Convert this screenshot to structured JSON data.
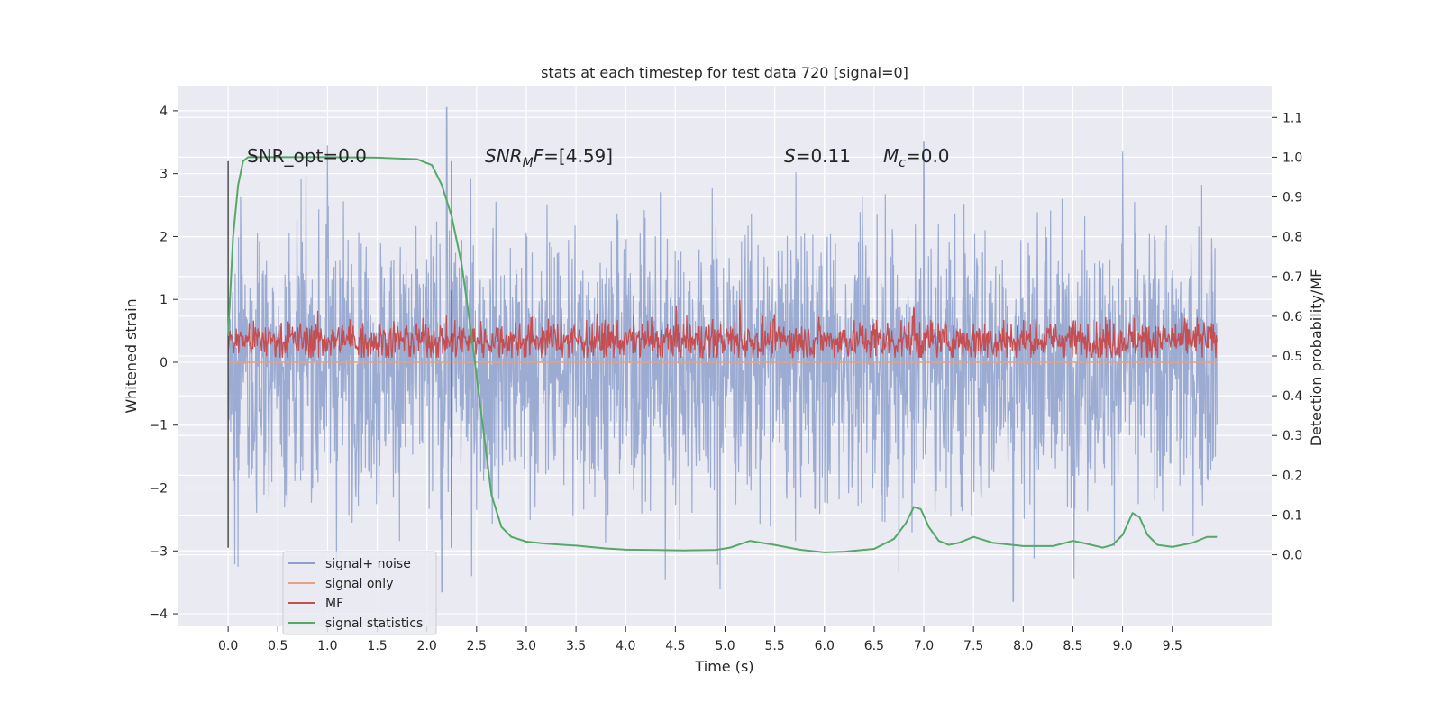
{
  "chart_data": {
    "type": "line",
    "title": "stats at each timestep for test data 720 [signal=0]",
    "xlabel": "Time (s)",
    "ylabel": "Whitened strain",
    "ylabel_right": "Detection probability/MF",
    "xlim": [
      -0.5,
      10.5
    ],
    "ylim": [
      -4.2,
      4.4
    ],
    "ylim_right": [
      -0.18,
      1.18
    ],
    "grid": true,
    "legend_placement": "lower-left",
    "x_ticks": [
      "0.0",
      "0.5",
      "1.0",
      "1.5",
      "2.0",
      "2.5",
      "3.0",
      "3.5",
      "4.0",
      "4.5",
      "5.0",
      "5.5",
      "6.0",
      "6.5",
      "7.0",
      "7.5",
      "8.0",
      "8.5",
      "9.0",
      "9.5"
    ],
    "y_ticks": [
      "4",
      "3",
      "2",
      "1",
      "0",
      "−1",
      "−2",
      "−3",
      "−4"
    ],
    "y_ticks_right": [
      "1.1",
      "1.0",
      "0.9",
      "0.8",
      "0.7",
      "0.6",
      "0.5",
      "0.4",
      "0.3",
      "0.2",
      "0.1",
      "0.0"
    ],
    "annotations": {
      "snr_opt": "SNR_opt=0.0",
      "snr_mf_base": "SNR",
      "snr_mf_sub": "M",
      "snr_mf_rest": "F=[4.59]",
      "s_stat": "=0.11",
      "s_symbol": "S",
      "mc_base": "M",
      "mc_sub": "c",
      "mc_rest": "=0.0"
    },
    "vertical_markers": [
      0.0,
      2.25
    ],
    "series": [
      {
        "name": "signal+ noise",
        "color": "#8da0cb",
        "x_start": 0.0,
        "x_end": 9.95,
        "typical_range": [
          -1.9,
          1.9
        ],
        "peaks": [
          {
            "x": 2.2,
            "y": 4.05
          },
          {
            "x": 0.1,
            "y": -3.25
          },
          {
            "x": 2.15,
            "y": -3.65
          },
          {
            "x": 2.45,
            "y": -3.4
          },
          {
            "x": 7.9,
            "y": -3.8
          },
          {
            "x": 7.0,
            "y": 3.5
          },
          {
            "x": 1.0,
            "y": 3.45
          },
          {
            "x": 9.0,
            "y": 3.35
          },
          {
            "x": 4.95,
            "y": -3.6
          },
          {
            "x": 4.4,
            "y": -3.45
          },
          {
            "x": 6.75,
            "y": -3.35
          }
        ]
      },
      {
        "name": "signal only",
        "color": "#e8a07d",
        "x": [
          0.0,
          9.95
        ],
        "values": [
          0.0,
          0.0
        ]
      },
      {
        "name": "MF",
        "color": "#c44e52",
        "axis": "right",
        "x_start": 0.0,
        "x_end": 9.95,
        "typical_range": [
          0.5,
          0.58
        ],
        "peaks": [
          {
            "x": 5.15,
            "y": 0.64
          },
          {
            "x": 3.35,
            "y": 0.62
          },
          {
            "x": 6.9,
            "y": 0.62
          }
        ]
      },
      {
        "name": "signal statistics",
        "color": "#55a868",
        "axis": "right",
        "x": [
          0.0,
          0.05,
          0.1,
          0.15,
          0.2,
          0.3,
          0.5,
          1.0,
          1.5,
          1.9,
          2.05,
          2.15,
          2.25,
          2.35,
          2.45,
          2.55,
          2.65,
          2.75,
          2.85,
          3.0,
          3.2,
          3.5,
          3.8,
          4.0,
          4.3,
          4.6,
          4.9,
          5.05,
          5.25,
          5.5,
          5.75,
          6.0,
          6.2,
          6.5,
          6.7,
          6.82,
          6.9,
          6.97,
          7.05,
          7.15,
          7.25,
          7.35,
          7.5,
          7.7,
          8.0,
          8.3,
          8.5,
          8.6,
          8.8,
          8.9,
          9.0,
          9.1,
          9.17,
          9.25,
          9.35,
          9.5,
          9.7,
          9.85,
          9.95
        ],
        "values": [
          0.55,
          0.8,
          0.93,
          0.99,
          1.0,
          1.0,
          1.0,
          1.0,
          0.999,
          0.995,
          0.98,
          0.93,
          0.85,
          0.73,
          0.55,
          0.35,
          0.15,
          0.07,
          0.045,
          0.033,
          0.028,
          0.023,
          0.016,
          0.013,
          0.012,
          0.011,
          0.012,
          0.018,
          0.035,
          0.025,
          0.013,
          0.006,
          0.008,
          0.015,
          0.04,
          0.08,
          0.12,
          0.115,
          0.07,
          0.035,
          0.025,
          0.03,
          0.045,
          0.03,
          0.022,
          0.022,
          0.035,
          0.03,
          0.018,
          0.025,
          0.05,
          0.105,
          0.095,
          0.05,
          0.025,
          0.02,
          0.03,
          0.045,
          0.045
        ]
      }
    ]
  }
}
